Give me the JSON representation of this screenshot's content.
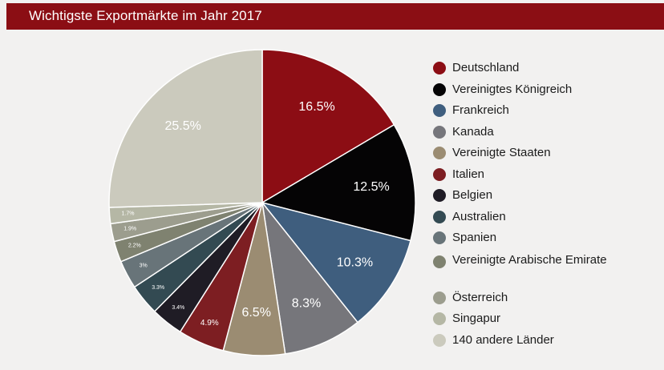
{
  "header": {
    "title": "Wichtigste Exportmärkte im Jahr 2017"
  },
  "chart_data": {
    "type": "pie",
    "start_angle_deg": 0,
    "direction": "clockwise",
    "legend_placement": "right",
    "slices": [
      {
        "label": "Deutschland",
        "value": 16.5,
        "display": "16.5%",
        "color": "#8c0d14"
      },
      {
        "label": "Vereinigtes Königreich",
        "value": 12.5,
        "display": "12.5%",
        "color": "#050405"
      },
      {
        "label": "Frankreich",
        "value": 10.3,
        "display": "10.3%",
        "color": "#3f5e7e"
      },
      {
        "label": "Kanada",
        "value": 8.3,
        "display": "8.3%",
        "color": "#76767b"
      },
      {
        "label": "Vereinigte Staaten",
        "value": 6.5,
        "display": "6.5%",
        "color": "#9b8c72"
      },
      {
        "label": "Italien",
        "value": 4.9,
        "display": "4.9%",
        "color": "#7d1e22"
      },
      {
        "label": "Belgien",
        "value": 3.4,
        "display": "3.4%",
        "color": "#1f1c25"
      },
      {
        "label": "Australien",
        "value": 3.3,
        "display": "3.3%",
        "color": "#334a52"
      },
      {
        "label": "Spanien",
        "value": 3.0,
        "display": "3%",
        "color": "#687479"
      },
      {
        "label": "Vereinigte Arabische Emirate",
        "value": 2.2,
        "display": "2.2%",
        "color": "#7f8270"
      },
      {
        "label": "Österreich",
        "value": 1.9,
        "display": "1.9%",
        "color": "#9c9d8e"
      },
      {
        "label": "Singapur",
        "value": 1.7,
        "display": "1.7%",
        "color": "#b5b7a5"
      },
      {
        "label": "140 andere Länder",
        "value": 25.5,
        "display": "25.5%",
        "color": "#cbcabd"
      }
    ]
  }
}
